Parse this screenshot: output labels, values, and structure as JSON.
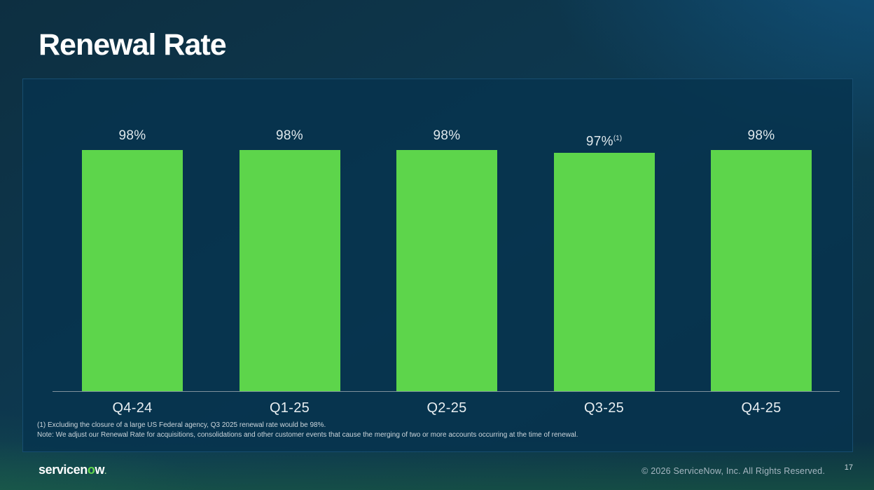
{
  "slide": {
    "title": "Renewal Rate",
    "page_number": "17",
    "copyright": "© 2026 ServiceNow, Inc. All Rights Reserved.",
    "logo": {
      "prefix": "servicen",
      "green_letter": "o",
      "suffix": "w",
      "dot": "."
    }
  },
  "footnotes": {
    "line1": "(1) Excluding the closure of a large US Federal agency, Q3 2025 renewal rate would be 98%.",
    "line2": "Note: We adjust our Renewal Rate for acquisitions, consolidations and other customer events that cause the merging of two or more accounts occurring at the time of renewal."
  },
  "chart_data": {
    "type": "bar",
    "title": "Renewal Rate",
    "categories": [
      "Q4-24",
      "Q1-25",
      "Q2-25",
      "Q3-25",
      "Q4-25"
    ],
    "values": [
      98,
      98,
      98,
      97,
      98
    ],
    "data_labels": [
      "98%",
      "98%",
      "98%",
      "97%",
      "98%"
    ],
    "superscripts": [
      "",
      "",
      "",
      "(1)",
      ""
    ],
    "ylim": [
      0,
      100
    ],
    "xlabel": "",
    "ylabel": "",
    "grid": false,
    "legend": false,
    "bar_color": "#5dd54b"
  },
  "colors": {
    "background_navy": "#0d3a52",
    "background_green_glow": "#20684c",
    "panel_border": "#174d70",
    "bar_green": "#5dd54b",
    "text_light": "#e8eef1",
    "logo_green": "#62d84e"
  }
}
